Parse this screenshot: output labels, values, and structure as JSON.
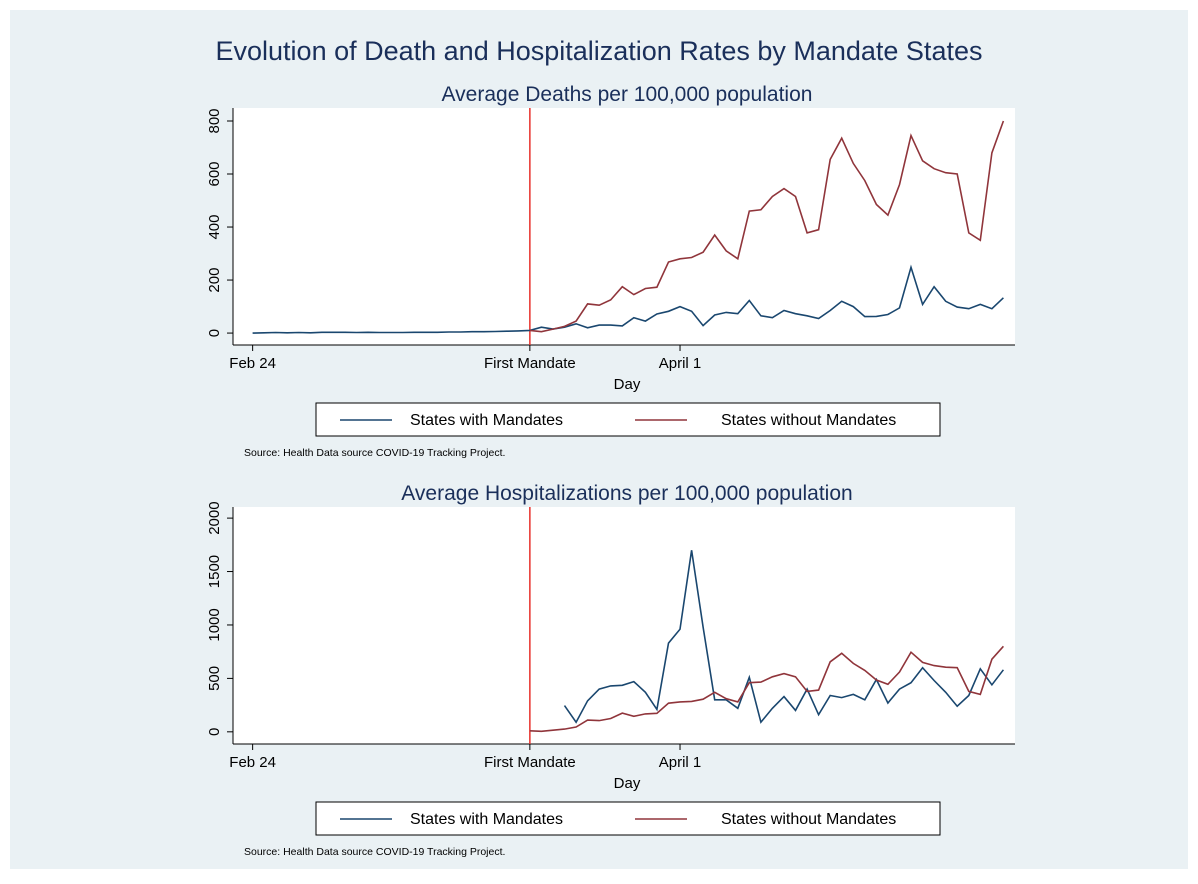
{
  "title": "Evolution of Death and Hospitalization Rates by Mandate States",
  "chart_data": [
    {
      "type": "line",
      "title": "Average Deaths per 100,000 population",
      "x_label": "Day",
      "note": "Source:  Health Data source COVID-19 Tracking Project.",
      "x": [
        0,
        1,
        2,
        3,
        4,
        5,
        6,
        7,
        8,
        9,
        10,
        11,
        12,
        13,
        14,
        15,
        16,
        17,
        18,
        19,
        20,
        21,
        22,
        23,
        24,
        25,
        26,
        27,
        28,
        29,
        30,
        31,
        32,
        33,
        34,
        35,
        36,
        37,
        38,
        39,
        40,
        41,
        42,
        43,
        44,
        45,
        46,
        47,
        48,
        49,
        50,
        51,
        52,
        53,
        54,
        55,
        56,
        57,
        58,
        59,
        60,
        61,
        62,
        63,
        64,
        65
      ],
      "xlim": [
        -1.7,
        66
      ],
      "xticks": [
        {
          "value": 0,
          "label": "Feb 24"
        },
        {
          "value": 24,
          "label": "First Mandate"
        },
        {
          "value": 37,
          "label": "April 1"
        }
      ],
      "ylim": [
        -45,
        849
      ],
      "yticks": [
        0,
        200,
        400,
        600,
        800
      ],
      "grid": false,
      "xline": 24,
      "xline_color": "#e8312b",
      "series": [
        {
          "name": "States with Mandates",
          "color": "#1a476f",
          "values": [
            0,
            1,
            2,
            1,
            2,
            1,
            3,
            3,
            3,
            2,
            3,
            2,
            2,
            2,
            3,
            3,
            3,
            4,
            4,
            5,
            5,
            6,
            7,
            8,
            10,
            22,
            15,
            22,
            35,
            20,
            30,
            30,
            27,
            58,
            45,
            72,
            82,
            100,
            82,
            28,
            68,
            78,
            73,
            123,
            65,
            58,
            85,
            73,
            65,
            55,
            85,
            120,
            100,
            62,
            63,
            70,
            95,
            248,
            108,
            175,
            120,
            98,
            92,
            108,
            92,
            133
          ]
        },
        {
          "name": "States without Mandates",
          "color": "#90353b",
          "values": [
            null,
            null,
            null,
            null,
            null,
            null,
            null,
            null,
            null,
            null,
            null,
            null,
            null,
            null,
            null,
            null,
            null,
            null,
            null,
            null,
            null,
            null,
            null,
            null,
            10,
            5,
            15,
            25,
            45,
            110,
            105,
            125,
            175,
            145,
            168,
            173,
            268,
            280,
            285,
            305,
            370,
            310,
            280,
            460,
            465,
            515,
            545,
            515,
            378,
            390,
            655,
            735,
            640,
            575,
            485,
            445,
            560,
            745,
            650,
            620,
            605,
            600,
            378,
            350,
            680,
            800
          ]
        }
      ]
    },
    {
      "type": "line",
      "title": "Average Hospitalizations per 100,000 population",
      "x_label": "Day",
      "note": "Source:  Health Data source COVID-19 Tracking Project.",
      "x": [
        0,
        1,
        2,
        3,
        4,
        5,
        6,
        7,
        8,
        9,
        10,
        11,
        12,
        13,
        14,
        15,
        16,
        17,
        18,
        19,
        20,
        21,
        22,
        23,
        24,
        25,
        26,
        27,
        28,
        29,
        30,
        31,
        32,
        33,
        34,
        35,
        36,
        37,
        38,
        39,
        40,
        41,
        42,
        43,
        44,
        45,
        46,
        47,
        48,
        49,
        50,
        51,
        52,
        53,
        54,
        55,
        56,
        57,
        58,
        59,
        60,
        61,
        62,
        63,
        64,
        65
      ],
      "xlim": [
        -1.7,
        66
      ],
      "xticks": [
        {
          "value": 0,
          "label": "Feb 24"
        },
        {
          "value": 24,
          "label": "First Mandate"
        },
        {
          "value": 37,
          "label": "April 1"
        }
      ],
      "ylim": [
        -114,
        2104
      ],
      "yticks": [
        0,
        500,
        1000,
        1500,
        2000
      ],
      "grid": false,
      "xline": 24,
      "xline_color": "#e8312b",
      "series": [
        {
          "name": "States with Mandates",
          "color": "#1a476f",
          "values": [
            null,
            null,
            null,
            null,
            null,
            null,
            null,
            null,
            null,
            null,
            null,
            null,
            null,
            null,
            null,
            null,
            null,
            null,
            null,
            null,
            null,
            null,
            null,
            null,
            null,
            null,
            null,
            245,
            90,
            290,
            400,
            430,
            435,
            470,
            370,
            210,
            830,
            960,
            1700,
            980,
            300,
            300,
            220,
            510,
            90,
            220,
            330,
            200,
            400,
            160,
            340,
            320,
            350,
            300,
            490,
            270,
            400,
            460,
            600,
            480,
            370,
            240,
            340,
            590,
            440,
            580
          ]
        },
        {
          "name": "States without Mandates",
          "color": "#90353b",
          "values": [
            null,
            null,
            null,
            null,
            null,
            null,
            null,
            null,
            null,
            null,
            null,
            null,
            null,
            null,
            null,
            null,
            null,
            null,
            null,
            null,
            null,
            null,
            null,
            null,
            10,
            5,
            15,
            25,
            45,
            110,
            105,
            125,
            175,
            145,
            168,
            173,
            268,
            280,
            285,
            305,
            370,
            310,
            280,
            460,
            465,
            515,
            545,
            515,
            378,
            390,
            655,
            735,
            640,
            575,
            485,
            445,
            560,
            745,
            650,
            620,
            605,
            600,
            378,
            350,
            680,
            800
          ]
        }
      ]
    }
  ]
}
